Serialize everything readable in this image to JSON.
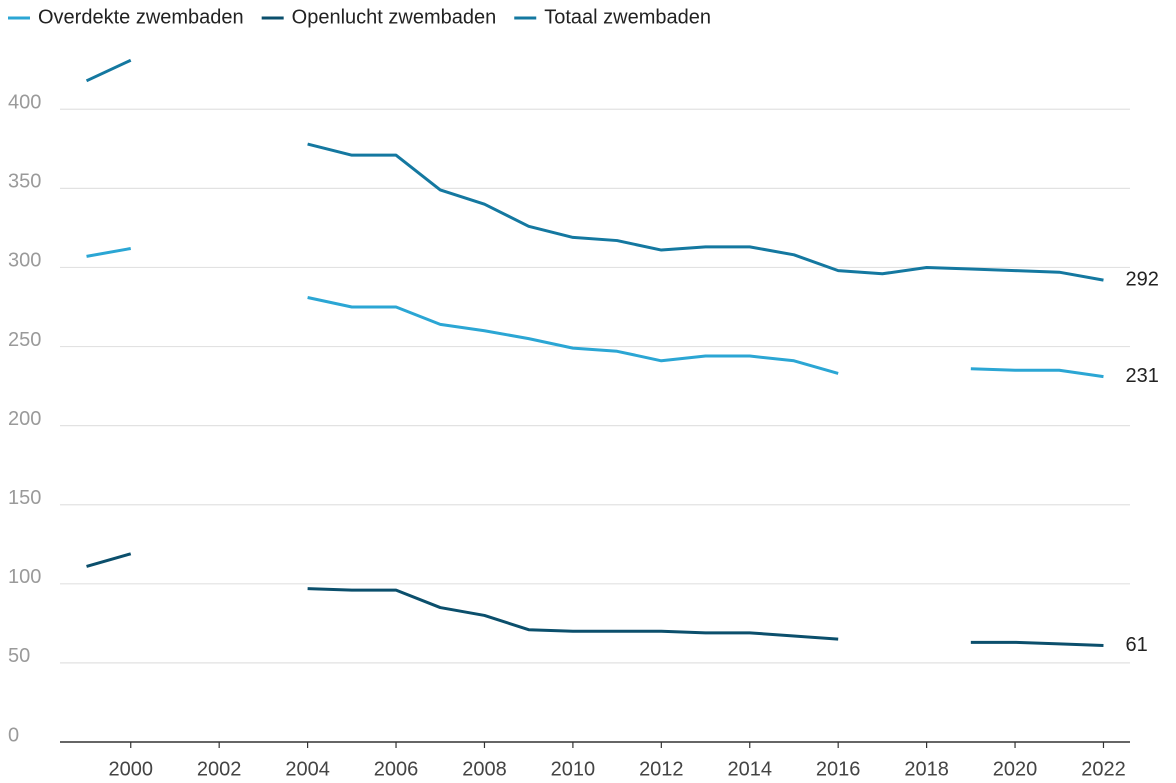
{
  "chart_data": {
    "type": "line",
    "x": [
      1999,
      2000,
      2001,
      2002,
      2003,
      2004,
      2005,
      2006,
      2007,
      2008,
      2009,
      2010,
      2011,
      2012,
      2013,
      2014,
      2015,
      2016,
      2017,
      2018,
      2019,
      2020,
      2021,
      2022
    ],
    "series": [
      {
        "name": "Overdekte zwembaden",
        "color": "#2ba6d4",
        "values": [
          307,
          312,
          null,
          null,
          null,
          281,
          275,
          275,
          264,
          260,
          255,
          249,
          247,
          241,
          244,
          244,
          241,
          233,
          null,
          null,
          236,
          235,
          235,
          231
        ]
      },
      {
        "name": "Openlucht zwembaden",
        "color": "#0b4f6c",
        "values": [
          111,
          119,
          null,
          null,
          null,
          97,
          96,
          96,
          85,
          80,
          71,
          70,
          70,
          70,
          69,
          69,
          67,
          65,
          null,
          null,
          63,
          63,
          62,
          61
        ]
      },
      {
        "name": "Totaal zwembaden",
        "color": "#1478a0",
        "values": [
          418,
          431,
          null,
          null,
          null,
          378,
          371,
          371,
          349,
          340,
          326,
          319,
          317,
          311,
          313,
          313,
          308,
          298,
          296,
          300,
          299,
          298,
          297,
          292
        ]
      }
    ],
    "xlim": [
      1998.4,
      2022.6
    ],
    "xticks": [
      2000,
      2002,
      2004,
      2006,
      2008,
      2010,
      2012,
      2014,
      2016,
      2018,
      2020,
      2022
    ],
    "ylim": [
      0,
      440
    ],
    "yticks": [
      0,
      50,
      100,
      150,
      200,
      250,
      300,
      350,
      400
    ],
    "grid": true
  }
}
